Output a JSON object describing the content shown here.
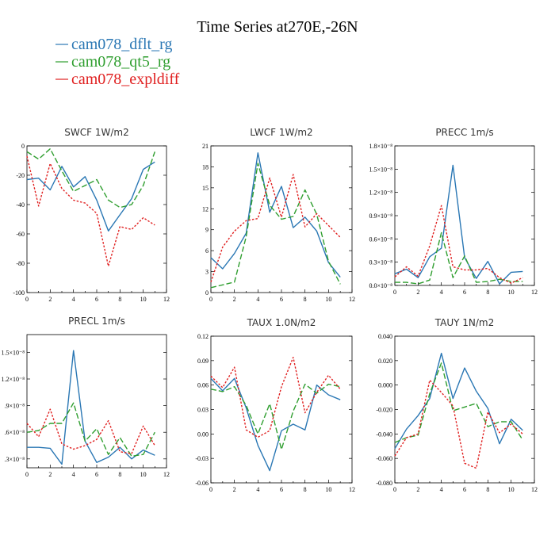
{
  "figure": {
    "title": "Time Series at270E,-26N",
    "legend": [
      {
        "label": "cam078_dflt_rg",
        "color": "#2a77b4"
      },
      {
        "label": "cam078_qt5_rg",
        "color": "#2f9e2f"
      },
      {
        "label": "cam078_expldiff",
        "color": "#e02020"
      }
    ]
  },
  "chart_data": [
    {
      "type": "line",
      "title": "SWCF   1W/m2",
      "xlim": [
        0,
        12
      ],
      "ylim": [
        -100,
        0
      ],
      "xticks": [
        "0",
        "2",
        "4",
        "6",
        "8",
        "10",
        "12"
      ],
      "yticks": [
        "0",
        "-20",
        "-40",
        "-60",
        "-80",
        "-100"
      ],
      "x": [
        0,
        1,
        2,
        3,
        4,
        5,
        6,
        7,
        8,
        9,
        10,
        11
      ],
      "series": [
        {
          "name": "cam078_dflt_rg",
          "style": "solid",
          "color": "#2a77b4",
          "values": [
            -23,
            -22,
            -30,
            -14,
            -28,
            -21,
            -37,
            -58,
            -47,
            -36,
            -16,
            -11
          ]
        },
        {
          "name": "cam078_qt5_rg",
          "style": "dashed",
          "color": "#2f9e2f",
          "values": [
            -4,
            -9,
            -2,
            -17,
            -31,
            -27,
            -23,
            -37,
            -42,
            -40,
            -27,
            -4
          ]
        },
        {
          "name": "cam078_expldiff",
          "style": "dotted",
          "color": "#e02020",
          "values": [
            -7,
            -41,
            -12,
            -29,
            -37,
            -39,
            -46,
            -82,
            -55,
            -57,
            -49,
            -54
          ]
        }
      ]
    },
    {
      "type": "line",
      "title": "LWCF   1W/m2",
      "xlim": [
        0,
        12
      ],
      "ylim": [
        0,
        21
      ],
      "xticks": [
        "0",
        "2",
        "4",
        "6",
        "8",
        "10",
        "12"
      ],
      "yticks": [
        "0",
        "3",
        "6",
        "9",
        "12",
        "15",
        "18",
        "21"
      ],
      "x": [
        0,
        1,
        2,
        3,
        4,
        5,
        6,
        7,
        8,
        9,
        10,
        11
      ],
      "series": [
        {
          "name": "cam078_dflt_rg",
          "style": "solid",
          "color": "#2a77b4",
          "values": [
            5.0,
            3.4,
            5.6,
            8.5,
            20.0,
            11.5,
            15.2,
            9.3,
            10.8,
            8.8,
            4.3,
            2.2
          ]
        },
        {
          "name": "cam078_qt5_rg",
          "style": "dashed",
          "color": "#2f9e2f",
          "values": [
            0.7,
            1.1,
            1.5,
            8.0,
            18.5,
            12.5,
            10.5,
            10.9,
            14.7,
            11.2,
            4.5,
            1.2
          ]
        },
        {
          "name": "cam078_expldiff",
          "style": "dotted",
          "color": "#e02020",
          "values": [
            1.5,
            6.5,
            8.8,
            10.3,
            10.6,
            16.4,
            10.8,
            16.9,
            9.4,
            11.3,
            9.6,
            7.9
          ]
        }
      ]
    },
    {
      "type": "line",
      "title": "PRECC   1m/s",
      "xlim": [
        0,
        12
      ],
      "ylim": [
        0,
        1.8
      ],
      "xticks": [
        "0",
        "2",
        "4",
        "6",
        "8",
        "10",
        "12"
      ],
      "yticks": [
        "0.0×10⁻⁸",
        "0.3×10⁻⁸",
        "0.6×10⁻⁸",
        "0.9×10⁻⁸",
        "1.2×10⁻⁸",
        "1.5×10⁻⁸",
        "1.8×10⁻⁸"
      ],
      "x": [
        0,
        1,
        2,
        3,
        4,
        5,
        6,
        7,
        8,
        9,
        10,
        11
      ],
      "series": [
        {
          "name": "cam078_dflt_rg",
          "style": "solid",
          "color": "#2a77b4",
          "values": [
            0.15,
            0.21,
            0.1,
            0.37,
            0.48,
            1.55,
            0.36,
            0.09,
            0.31,
            0.02,
            0.17,
            0.18
          ]
        },
        {
          "name": "cam078_qt5_rg",
          "style": "dashed",
          "color": "#2f9e2f",
          "values": [
            0.04,
            0.04,
            0.02,
            0.07,
            0.68,
            0.1,
            0.38,
            0.04,
            0.05,
            0.08,
            0.05,
            0.05
          ]
        },
        {
          "name": "cam078_expldiff",
          "style": "dotted",
          "color": "#e02020",
          "values": [
            0.11,
            0.24,
            0.12,
            0.51,
            1.03,
            0.24,
            0.2,
            0.2,
            0.22,
            0.1,
            0.03,
            0.1
          ]
        }
      ]
    },
    {
      "type": "line",
      "title": "PRECL   1m/s",
      "xlim": [
        0,
        12
      ],
      "ylim": [
        0.2,
        1.7
      ],
      "xticks": [
        "0",
        "2",
        "4",
        "6",
        "8",
        "10",
        "12"
      ],
      "yticks": [
        ".3×10⁻⁸",
        ".6×10⁻⁸",
        ".9×10⁻⁸",
        "1.2×10⁻⁸",
        "1.5×10⁻⁸"
      ],
      "x": [
        0,
        1,
        2,
        3,
        4,
        5,
        6,
        7,
        8,
        9,
        10,
        11
      ],
      "series": [
        {
          "name": "cam078_dflt_rg",
          "style": "solid",
          "color": "#2a77b4",
          "values": [
            0.43,
            0.43,
            0.42,
            0.24,
            1.52,
            0.5,
            0.26,
            0.32,
            0.43,
            0.3,
            0.4,
            0.34
          ]
        },
        {
          "name": "cam078_qt5_rg",
          "style": "dashed",
          "color": "#2f9e2f",
          "values": [
            0.6,
            0.62,
            0.7,
            0.7,
            0.93,
            0.5,
            0.64,
            0.35,
            0.54,
            0.33,
            0.35,
            0.6
          ]
        },
        {
          "name": "cam078_expldiff",
          "style": "dotted",
          "color": "#e02020",
          "values": [
            0.7,
            0.55,
            0.86,
            0.47,
            0.41,
            0.45,
            0.52,
            0.73,
            0.38,
            0.36,
            0.67,
            0.45
          ]
        }
      ]
    },
    {
      "type": "line",
      "title": "TAUX   1.0N/m2",
      "xlim": [
        0,
        12
      ],
      "ylim": [
        -0.06,
        0.12
      ],
      "xticks": [
        "0",
        "2",
        "4",
        "6",
        "8",
        "10",
        "12"
      ],
      "yticks": [
        "-0.06",
        "-0.03",
        "0.00",
        "0.03",
        "0.06",
        "0.09",
        "0.12"
      ],
      "x": [
        0,
        1,
        2,
        3,
        4,
        5,
        6,
        7,
        8,
        9,
        10,
        11
      ],
      "series": [
        {
          "name": "cam078_dflt_rg",
          "style": "solid",
          "color": "#2a77b4",
          "values": [
            0.068,
            0.053,
            0.068,
            0.032,
            -0.014,
            -0.045,
            0.004,
            0.012,
            0.005,
            0.06,
            0.048,
            0.042
          ]
        },
        {
          "name": "cam078_qt5_rg",
          "style": "dashed",
          "color": "#2f9e2f",
          "values": [
            0.055,
            0.052,
            0.058,
            0.035,
            0.0,
            0.037,
            -0.019,
            0.028,
            0.061,
            0.05,
            0.061,
            0.058
          ]
        },
        {
          "name": "cam078_expldiff",
          "style": "dotted",
          "color": "#e02020",
          "values": [
            0.071,
            0.057,
            0.082,
            0.005,
            -0.004,
            0.004,
            0.058,
            0.094,
            0.026,
            0.051,
            0.072,
            0.055
          ]
        }
      ]
    },
    {
      "type": "line",
      "title": "TAUY   1N/m2",
      "xlim": [
        0,
        12
      ],
      "ylim": [
        -0.08,
        0.04
      ],
      "xticks": [
        "0",
        "2",
        "4",
        "6",
        "8",
        "10",
        "12"
      ],
      "yticks": [
        "-0.080",
        "-0.060",
        "-0.040",
        "-0.020",
        "0.000",
        "0.020",
        "0.040"
      ],
      "x": [
        0,
        1,
        2,
        3,
        4,
        5,
        6,
        7,
        8,
        9,
        10,
        11
      ],
      "series": [
        {
          "name": "cam078_dflt_rg",
          "style": "solid",
          "color": "#2a77b4",
          "values": [
            -0.052,
            -0.036,
            -0.025,
            -0.011,
            0.026,
            -0.011,
            0.014,
            -0.005,
            -0.019,
            -0.048,
            -0.028,
            -0.037
          ]
        },
        {
          "name": "cam078_qt5_rg",
          "style": "dashed",
          "color": "#2f9e2f",
          "values": [
            -0.047,
            -0.043,
            -0.041,
            -0.007,
            0.018,
            -0.021,
            -0.018,
            -0.015,
            -0.034,
            -0.03,
            -0.03,
            -0.045
          ]
        },
        {
          "name": "cam078_expldiff",
          "style": "dotted",
          "color": "#e02020",
          "values": [
            -0.058,
            -0.043,
            -0.04,
            0.004,
            -0.006,
            -0.017,
            -0.064,
            -0.068,
            -0.022,
            -0.039,
            -0.032,
            -0.04
          ]
        }
      ]
    }
  ]
}
